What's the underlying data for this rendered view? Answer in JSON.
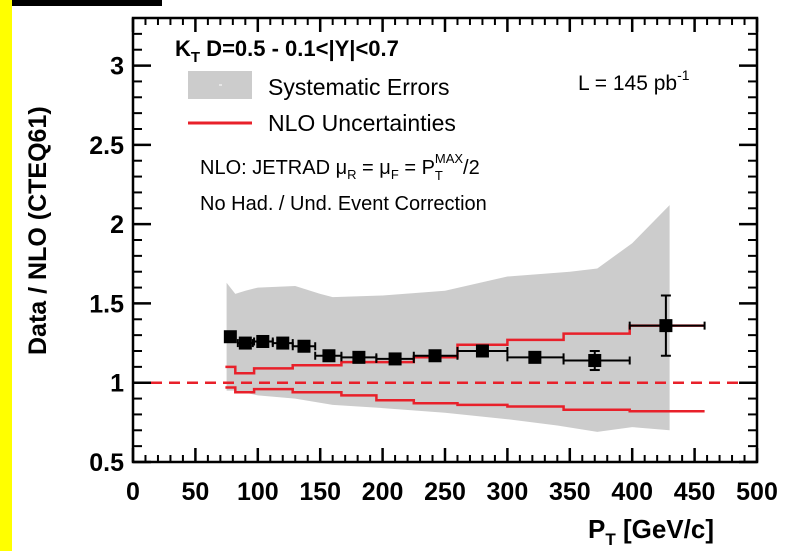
{
  "chart_data": {
    "type": "scatter",
    "title_main": "K",
    "title_sub": "T",
    "title_rest": " D=0.5 - 0.1<|Y|<0.7",
    "xlabel_main": "P",
    "xlabel_sub": "T",
    "xlabel_rest": " [GeV/c]",
    "ylabel": "Data / NLO (CTEQ61)",
    "xlim": [
      0,
      500
    ],
    "ylim": [
      0.5,
      3.3
    ],
    "x_ticks": [
      "0",
      "50",
      "100",
      "150",
      "200",
      "250",
      "300",
      "350",
      "400",
      "450",
      "500"
    ],
    "y_ticks": [
      "0.5",
      "1",
      "1.5",
      "2",
      "2.5",
      "3"
    ],
    "legend": {
      "placement": "top-left",
      "systematic_label": "Systematic Errors",
      "nlo_label": "NLO Uncertainties"
    },
    "luminosity": {
      "main": "L = 145 pb",
      "sup": "-1"
    },
    "annotations": {
      "nlo_prefix": "NLO: JETRAD  ",
      "mu": "μ",
      "sub_r": "R",
      "eq": " = ",
      "sub_f": "F",
      "p": "P",
      "sub_t": "T",
      "sup_max": "MAX",
      "suffix": "/2",
      "no_corr": "No Had. / Und. Event Correction"
    },
    "reference_line": {
      "y": 1.0,
      "style": "dashed",
      "color": "#e8202a"
    },
    "colors": {
      "points": "#000000",
      "band": "#cccccc",
      "nlo": "#e8202a",
      "left_strip": "#ffff00"
    },
    "points": [
      {
        "x": 78,
        "y": 1.29,
        "xlo": 74,
        "xhi": 82,
        "yerr": 0.02
      },
      {
        "x": 90,
        "y": 1.25,
        "xlo": 84,
        "xhi": 96,
        "yerr": 0.02
      },
      {
        "x": 104,
        "y": 1.26,
        "xlo": 97,
        "xhi": 112,
        "yerr": 0.02
      },
      {
        "x": 120,
        "y": 1.25,
        "xlo": 112,
        "xhi": 128,
        "yerr": 0.02
      },
      {
        "x": 137,
        "y": 1.23,
        "xlo": 128,
        "xhi": 146,
        "yerr": 0.02
      },
      {
        "x": 157,
        "y": 1.17,
        "xlo": 146,
        "xhi": 167,
        "yerr": 0.02
      },
      {
        "x": 181,
        "y": 1.16,
        "xlo": 167,
        "xhi": 195,
        "yerr": 0.02
      },
      {
        "x": 210,
        "y": 1.15,
        "xlo": 195,
        "xhi": 225,
        "yerr": 0.02
      },
      {
        "x": 242,
        "y": 1.17,
        "xlo": 225,
        "xhi": 260,
        "yerr": 0.02
      },
      {
        "x": 280,
        "y": 1.2,
        "xlo": 260,
        "xhi": 300,
        "yerr": 0.02
      },
      {
        "x": 322,
        "y": 1.16,
        "xlo": 300,
        "xhi": 345,
        "yerr": 0.03
      },
      {
        "x": 370,
        "y": 1.14,
        "xlo": 345,
        "xhi": 398,
        "yerr": 0.06
      },
      {
        "x": 427,
        "y": 1.36,
        "xlo": 398,
        "xhi": 458,
        "yerr": 0.19
      }
    ],
    "systematic_band": {
      "upper": [
        [
          75,
          1.63
        ],
        [
          82,
          1.56
        ],
        [
          90,
          1.58
        ],
        [
          100,
          1.6
        ],
        [
          130,
          1.61
        ],
        [
          150,
          1.56
        ],
        [
          160,
          1.54
        ],
        [
          200,
          1.55
        ],
        [
          250,
          1.58
        ],
        [
          300,
          1.67
        ],
        [
          350,
          1.7
        ],
        [
          372,
          1.72
        ],
        [
          400,
          1.88
        ],
        [
          430,
          2.12
        ]
      ],
      "lower": [
        [
          430,
          0.7
        ],
        [
          400,
          0.72
        ],
        [
          372,
          0.69
        ],
        [
          340,
          0.73
        ],
        [
          300,
          0.77
        ],
        [
          250,
          0.81
        ],
        [
          200,
          0.84
        ],
        [
          160,
          0.86
        ],
        [
          130,
          0.9
        ],
        [
          100,
          0.92
        ],
        [
          82,
          0.95
        ],
        [
          75,
          0.95
        ]
      ]
    },
    "nlo_upper": [
      [
        74,
        1.1
      ],
      [
        82,
        1.1
      ],
      [
        82,
        1.06
      ],
      [
        97,
        1.06
      ],
      [
        97,
        1.09
      ],
      [
        128,
        1.09
      ],
      [
        128,
        1.11
      ],
      [
        167,
        1.11
      ],
      [
        167,
        1.13
      ],
      [
        225,
        1.13
      ],
      [
        225,
        1.16
      ],
      [
        260,
        1.16
      ],
      [
        260,
        1.24
      ],
      [
        300,
        1.24
      ],
      [
        300,
        1.27
      ],
      [
        345,
        1.27
      ],
      [
        345,
        1.31
      ],
      [
        398,
        1.31
      ],
      [
        398,
        1.36
      ],
      [
        458,
        1.36
      ]
    ],
    "nlo_lower": [
      [
        74,
        0.97
      ],
      [
        82,
        0.97
      ],
      [
        82,
        0.94
      ],
      [
        97,
        0.94
      ],
      [
        97,
        0.96
      ],
      [
        128,
        0.96
      ],
      [
        128,
        0.94
      ],
      [
        167,
        0.94
      ],
      [
        167,
        0.92
      ],
      [
        195,
        0.92
      ],
      [
        195,
        0.89
      ],
      [
        225,
        0.89
      ],
      [
        225,
        0.87
      ],
      [
        260,
        0.87
      ],
      [
        260,
        0.86
      ],
      [
        300,
        0.86
      ],
      [
        300,
        0.85
      ],
      [
        345,
        0.85
      ],
      [
        345,
        0.83
      ],
      [
        398,
        0.83
      ],
      [
        398,
        0.82
      ],
      [
        458,
        0.82
      ]
    ]
  }
}
